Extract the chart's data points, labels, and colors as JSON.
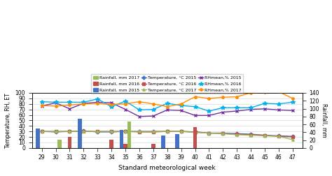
{
  "weeks": [
    29,
    30,
    31,
    32,
    33,
    34,
    35,
    36,
    37,
    38,
    39,
    40,
    41,
    42,
    43,
    44,
    45,
    46,
    47
  ],
  "rainfall_2015": [
    49,
    0,
    0,
    74,
    0,
    0,
    45,
    0,
    0,
    31,
    35,
    0,
    0,
    0,
    0,
    0,
    0,
    0,
    0
  ],
  "rainfall_2016": [
    0,
    0,
    28,
    0,
    0,
    21,
    11,
    0,
    11,
    0,
    0,
    53,
    0,
    0,
    0,
    0,
    0,
    0,
    0
  ],
  "rainfall_2017": [
    0,
    21,
    0,
    0,
    0,
    0,
    67,
    0,
    0,
    0,
    0,
    0,
    0,
    0,
    0,
    0,
    0,
    0,
    0
  ],
  "temp_2015": [
    30,
    29,
    30,
    31,
    29,
    29,
    30,
    30,
    30,
    30,
    30,
    29,
    27,
    27,
    26,
    25,
    23,
    22,
    21
  ],
  "temp_2016": [
    30,
    30,
    30,
    30,
    30,
    30,
    30,
    29,
    29,
    30,
    30,
    29,
    27,
    26,
    25,
    24,
    23,
    21,
    20
  ],
  "temp_2017": [
    30,
    30,
    30,
    30,
    30,
    30,
    30,
    30,
    30,
    30,
    30,
    28,
    27,
    26,
    24,
    23,
    22,
    21,
    15
  ],
  "rh_2015": [
    76,
    82,
    71,
    81,
    83,
    82,
    70,
    57,
    58,
    69,
    68,
    59,
    59,
    65,
    67,
    70,
    71,
    69,
    68
  ],
  "rh_2016": [
    84,
    83,
    83,
    83,
    89,
    75,
    85,
    69,
    70,
    81,
    77,
    75,
    67,
    73,
    73,
    73,
    81,
    80,
    83
  ],
  "rh_2017": [
    77,
    76,
    78,
    80,
    81,
    79,
    80,
    84,
    80,
    75,
    80,
    93,
    90,
    92,
    93,
    100,
    101,
    102,
    90
  ],
  "bar_width": 0.28,
  "color_rain_2015": "#4472C4",
  "color_rain_2016": "#C0504D",
  "color_rain_2017": "#9BBB59",
  "color_temp_2015": "#4472C4",
  "color_temp_2016": "#C0504D",
  "color_temp_2017": "#9BBB59",
  "color_rh_2015": "#7030A0",
  "color_rh_2016": "#00B0F0",
  "color_rh_2017": "#FF8C00",
  "ylim_left": [
    0,
    100
  ],
  "ylim_right": [
    0,
    140
  ],
  "yticks_left": [
    0,
    10,
    20,
    30,
    40,
    50,
    60,
    70,
    80,
    90,
    100
  ],
  "yticks_right": [
    0,
    20,
    40,
    60,
    80,
    100,
    120,
    140
  ],
  "xlabel": "Standard meteorological week",
  "ylabel_left": "Temperature, RH, ET",
  "ylabel_right": "Rainfall, mm"
}
